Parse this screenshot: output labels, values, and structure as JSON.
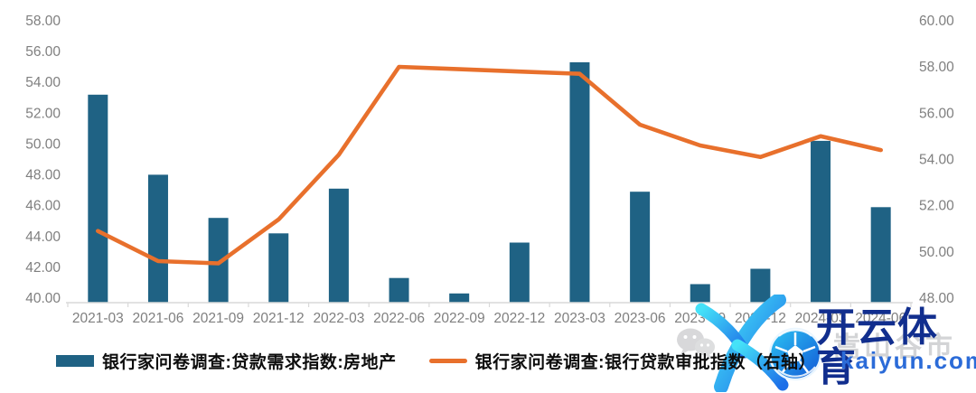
{
  "chart_data": {
    "type": "combo-bar-line",
    "title": "",
    "categories": [
      "2021-03",
      "2021-06",
      "2021-09",
      "2021-12",
      "2022-03",
      "2022-06",
      "2022-09",
      "2022-12",
      "2023-03",
      "2023-06",
      "2023-09",
      "2023-12",
      "2024-03",
      "2024-06"
    ],
    "series": [
      {
        "name": "银行家问卷调查:贷款需求指数:房地产",
        "type": "bar",
        "axis": "left",
        "color": "#1F6284",
        "values": [
          53.5,
          48.3,
          45.5,
          44.5,
          47.4,
          41.6,
          40.6,
          43.9,
          55.6,
          47.2,
          41.2,
          42.2,
          50.5,
          46.2
        ]
      },
      {
        "name": "银行家问卷调查:银行贷款审批指数（右轴）",
        "type": "line",
        "axis": "right",
        "color": "#E8702C",
        "values": [
          51.1,
          49.8,
          49.7,
          51.6,
          54.4,
          58.2,
          58.1,
          58.0,
          57.9,
          55.7,
          54.8,
          54.3,
          55.2,
          54.6
        ]
      }
    ],
    "left_axis": {
      "min": 40,
      "max": 58,
      "step": 2,
      "tick_labels": [
        "58.00",
        "56.00",
        "54.00",
        "52.00",
        "50.00",
        "48.00",
        "46.00",
        "44.00",
        "42.00",
        "40.00"
      ]
    },
    "right_axis": {
      "min": 48,
      "max": 60,
      "step": 2,
      "tick_labels": [
        "60.00",
        "58.00",
        "56.00",
        "54.00",
        "52.00",
        "50.00",
        "48.00"
      ]
    },
    "grid": false,
    "legend_position": "bottom",
    "axis_text_color": "#7F7F7F",
    "axis_line_color": "#D9D9D9"
  },
  "legend": {
    "items": [
      {
        "label": "银行家问卷调查:贷款需求指数:房地产",
        "swatch": "bar",
        "color": "#1F6284"
      },
      {
        "label": "银行家问卷调查:银行贷款审批指数（右轴）",
        "swatch": "line",
        "color": "#E8702C"
      }
    ]
  },
  "watermark": {
    "brand": "开云体育",
    "domain": "kaiyun.com",
    "faint_text": "嵩山谷市",
    "brand_color": "#112E8E",
    "domain_color": "#2B6BD8",
    "logo_gradient": [
      "#45E2F8",
      "#1D6FE8"
    ],
    "ball_gradient": [
      "#2CC4F3",
      "#1257D6"
    ]
  }
}
